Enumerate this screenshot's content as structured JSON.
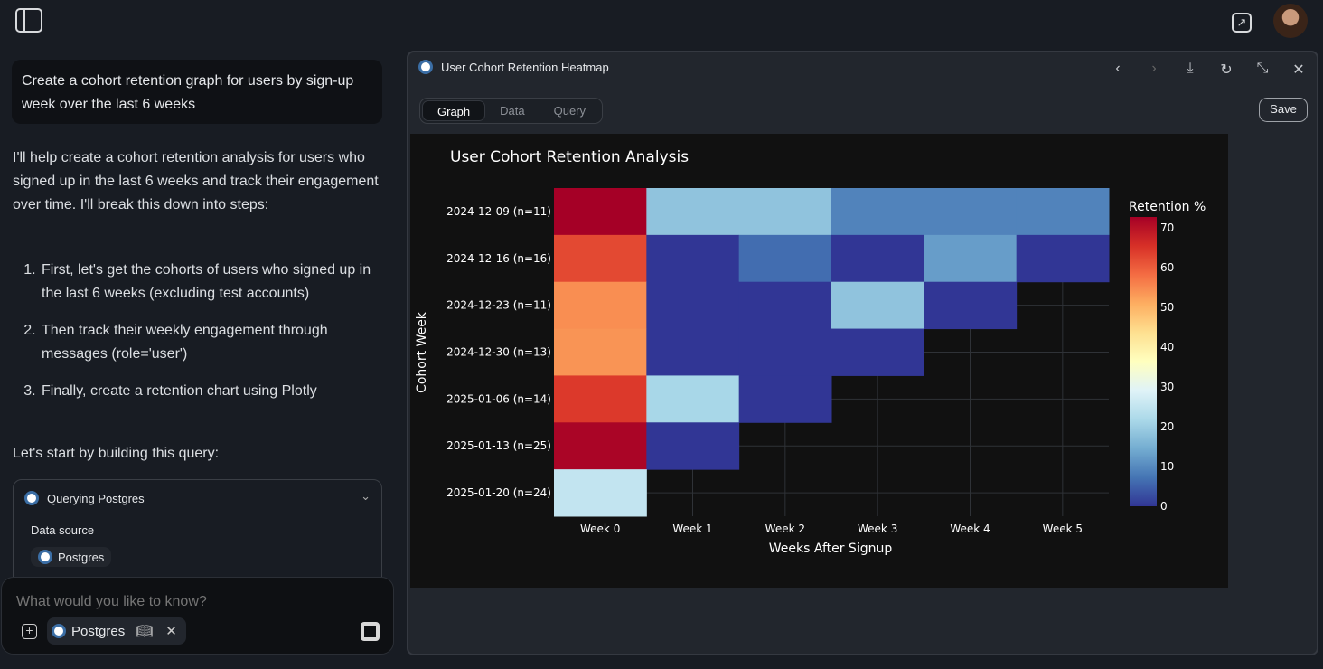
{
  "header": {
    "sidebar_icon": "sidebar-toggle-icon",
    "open_external_icon": "external-link-icon"
  },
  "chat": {
    "user_message": "Create a cohort retention graph for users by sign-up week over the last 6 weeks",
    "assistant_intro": "I'll help create a cohort retention analysis for users who signed up in the last 6 weeks and track their engagement over time. I'll break this down into steps:",
    "steps": [
      "First, let's get the cohorts of users who signed up in the last 6 weeks (excluding test accounts)",
      "Then track their weekly engagement through messages (role='user')",
      "Finally, create a retention chart using Plotly"
    ],
    "followup": "Let's start by building this query:",
    "query_card": {
      "title": "Querying Postgres",
      "data_source_label": "Data source",
      "data_source": "Postgres"
    },
    "composer": {
      "placeholder": "What would you like to know?",
      "source_chip": "Postgres"
    }
  },
  "panel": {
    "title": "User Cohort Retention Heatmap",
    "tabs": [
      "Graph",
      "Data",
      "Query"
    ],
    "active_tab": "Graph",
    "save_label": "Save"
  },
  "chart_data": {
    "type": "heatmap",
    "title": "User Cohort Retention Analysis",
    "xlabel": "Weeks After Signup",
    "ylabel": "Cohort Week",
    "colorbar_title": "Retention %",
    "colorscale": "RdYlBu (reversed)",
    "colorbar_ticks": [
      0,
      10,
      20,
      30,
      40,
      50,
      60,
      70
    ],
    "zrange": [
      0,
      72.7
    ],
    "x": [
      "Week 0",
      "Week 1",
      "Week 2",
      "Week 3",
      "Week 4",
      "Week 5"
    ],
    "y": [
      "2024-12-09 (n=11)",
      "2024-12-16 (n=16)",
      "2024-12-23 (n=11)",
      "2024-12-30 (n=13)",
      "2025-01-06 (n=14)",
      "2025-01-13 (n=25)",
      "2025-01-20 (n=24)"
    ],
    "z": [
      [
        72.7,
        18.2,
        18.2,
        9.1,
        9.1,
        9.1
      ],
      [
        62.5,
        0,
        6.3,
        0,
        12.5,
        0
      ],
      [
        54.5,
        0,
        0,
        18.2,
        0,
        null
      ],
      [
        53.8,
        0,
        0,
        0,
        null,
        null
      ],
      [
        64.3,
        21.4,
        0,
        null,
        null,
        null
      ],
      [
        72,
        0,
        null,
        null,
        null,
        null
      ],
      [
        25,
        null,
        null,
        null,
        null,
        null
      ]
    ]
  }
}
